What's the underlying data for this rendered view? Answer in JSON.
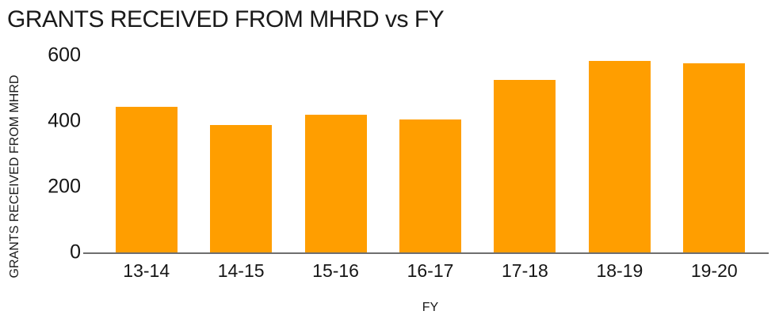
{
  "chart_data": {
    "type": "bar",
    "title": "GRANTS RECEIVED FROM MHRD vs FY",
    "xlabel": "FY",
    "ylabel": "GRANTS RECEIVED FROM MHRD",
    "categories": [
      "13-14",
      "14-15",
      "15-16",
      "16-17",
      "17-18",
      "18-19",
      "19-20"
    ],
    "values": [
      445,
      390,
      420,
      407,
      527,
      584,
      578
    ],
    "yticks": [
      0,
      200,
      400,
      600
    ],
    "ylim": [
      0,
      600
    ],
    "grid": false,
    "legend": "none",
    "bar_color": "#FF9E00",
    "axis_line_color": "#6F6F6F",
    "text_color": "#1A1A1A",
    "background": "#FFFFFF"
  }
}
